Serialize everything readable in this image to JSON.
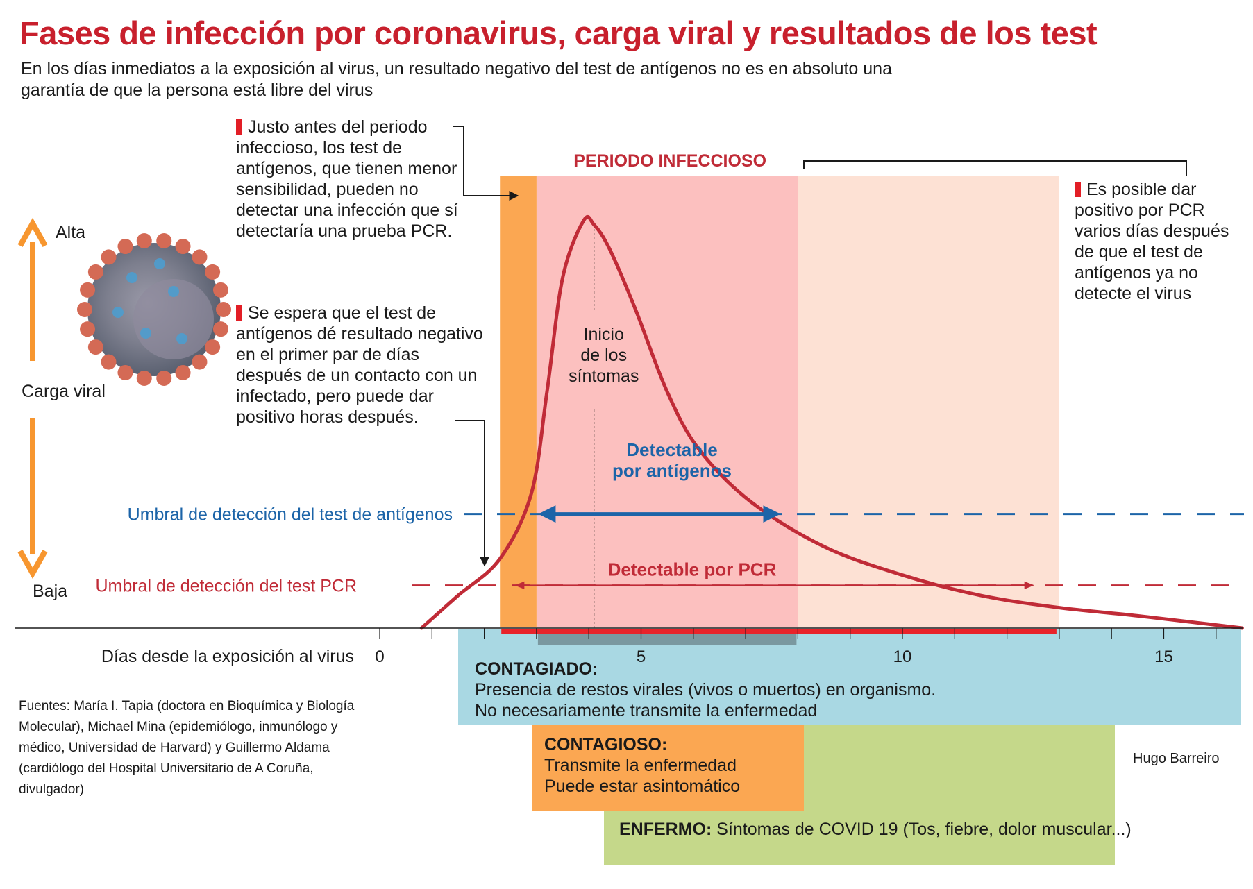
{
  "header": {
    "title": "Fases de infección por coronavirus, carga viral y resultados de los test",
    "subtitle": "En los días inmediatos a la exposición al virus, un resultado negativo del test de antígenos no es en absoluto una garantía de que la persona está libre del virus"
  },
  "notes": {
    "note1": "Justo antes del periodo infeccioso, los test de antígenos, que tienen menor sensibilidad, pueden no detectar una infección que sí detectaría una prueba PCR.",
    "note2": "Se espera que el test de antígenos dé resultado negativo en el primer par de días después de un contacto con un infectado, pero puede dar positivo horas después.",
    "note3": "Es posible dar positivo por PCR varios días después de que el test de antígenos ya no detecte el virus"
  },
  "phases": {
    "contagiado_label": "CONTAGIADO:",
    "contagiado_line1": "Presencia de restos virales (vivos o muertos) en organismo.",
    "contagiado_line2": "No necesariamente transmite la enfermedad",
    "contagioso_label": "CONTAGIOSO:",
    "contagioso_line1": "Transmite la enfermedad",
    "contagioso_line2": "Puede estar asintomático",
    "enfermo_label": "ENFERMO:",
    "enfermo_text": "Síntomas de COVID 19 (Tos, fiebre, dolor muscular...)"
  },
  "footer": {
    "sources": "Fuentes: María I. Tapia (doctora en Bioquímica y Biología Molecular), Michael Mina (epidemiólogo, inmunólogo y médico, Universidad de Harvard) y Guillermo Aldama (cardiólogo del Hospital Universitario de A Coruña, divulgador)",
    "author": "Hugo Barreiro"
  },
  "colors": {
    "title_red": "#c8202d",
    "curve_red": "#c02b37",
    "antigen_blue": "#1c64a8",
    "orange": "#fba752",
    "infectious_pink": "#fcc0bf",
    "light_peach": "#fde1d4",
    "arrow_orange": "#f7962f",
    "contagiado_blue": "#a9d8e3",
    "enfermo_green": "#c5d88a",
    "symptom_bar": "#7a98a0"
  },
  "icons": {
    "virus": "coronavirus-icon",
    "arrow_up": "arrow-up-icon",
    "arrow_down": "arrow-down-icon"
  },
  "chart_data": {
    "type": "area",
    "xlabel": "Días desde la exposición al virus",
    "ylabel": "Carga viral",
    "y_high_label": "Alta",
    "y_low_label": "Baja",
    "x_ticks": [
      0,
      5,
      10,
      15
    ],
    "xlim": [
      0,
      16.5
    ],
    "series": [
      {
        "x": [
          0.8,
          1.5,
          2.3,
          2.9,
          3.2,
          3.5,
          3.9,
          4.1,
          4.4,
          4.9,
          5.5,
          6.1,
          7.1,
          8.5,
          10,
          11.5,
          13,
          14.5,
          16.5
        ],
        "y": [
          0.0,
          0.08,
          0.17,
          0.33,
          0.58,
          0.86,
          1.0,
          0.99,
          0.93,
          0.78,
          0.58,
          0.44,
          0.31,
          0.2,
          0.13,
          0.08,
          0.05,
          0.03,
          0.0
        ]
      }
    ],
    "thresholds": [
      {
        "name": "Umbral de detección del test de antígenos",
        "y": 0.28
      },
      {
        "name": "Umbral de detección del test PCR",
        "y": 0.105
      }
    ],
    "periods": [
      {
        "name": "PERIODO INFECCIOSO",
        "start": 3.0,
        "end": 8.0
      },
      {
        "name": "",
        "start": 2.3,
        "end": 3.0
      },
      {
        "name": "",
        "start": 8.0,
        "end": 13.0
      }
    ],
    "annotations": {
      "symptom_onset": "Inicio de los síntomas",
      "symptom_day": 4.1,
      "antigen_detectable": "Detectable por antígenos",
      "antigen_range": [
        3.1,
        7.6
      ],
      "pcr_detectable": "Detectable por PCR",
      "pcr_range": [
        2.6,
        12.5
      ]
    }
  }
}
